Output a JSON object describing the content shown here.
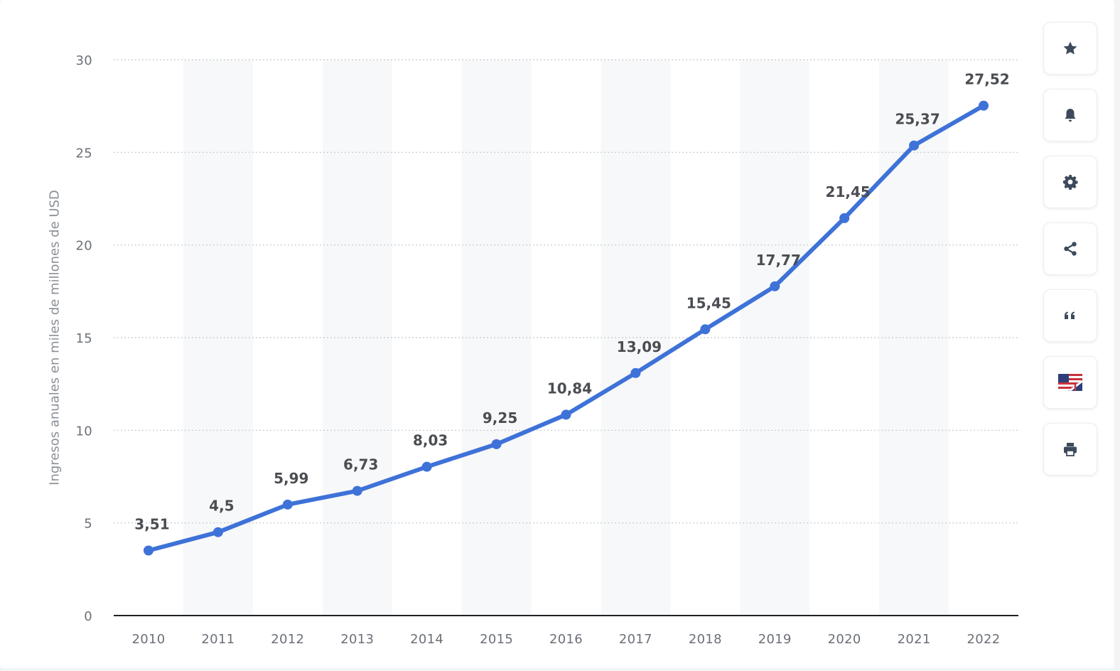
{
  "chart_data": {
    "type": "line",
    "categories": [
      "2010",
      "2011",
      "2012",
      "2013",
      "2014",
      "2015",
      "2016",
      "2017",
      "2018",
      "2019",
      "2020",
      "2021",
      "2022"
    ],
    "series": [
      {
        "values": [
          3.51,
          4.5,
          5.99,
          6.73,
          8.03,
          9.25,
          10.84,
          13.09,
          15.45,
          17.77,
          21.45,
          25.37,
          27.52
        ]
      }
    ],
    "data_labels": [
      "3,51",
      "4,5",
      "5,99",
      "6,73",
      "8,03",
      "9,25",
      "10,84",
      "13,09",
      "15,45",
      "17,77",
      "21,45",
      "25,37",
      "27,52"
    ],
    "ylabel": "Ingresos anuales en miles de millones de USD",
    "xlabel": "",
    "ylim": [
      0,
      30
    ],
    "yticks": [
      0,
      5,
      10,
      15,
      20,
      25,
      30
    ],
    "grid": "horizontal dotted",
    "line_color": "#3e72d8",
    "band_color": "#f7f8f9"
  },
  "toolbar": {
    "buttons": [
      {
        "name": "star-icon"
      },
      {
        "name": "bell-icon"
      },
      {
        "name": "gear-icon"
      },
      {
        "name": "share-icon"
      },
      {
        "name": "quote-icon"
      },
      {
        "name": "flag-icon"
      },
      {
        "name": "print-icon"
      }
    ]
  }
}
